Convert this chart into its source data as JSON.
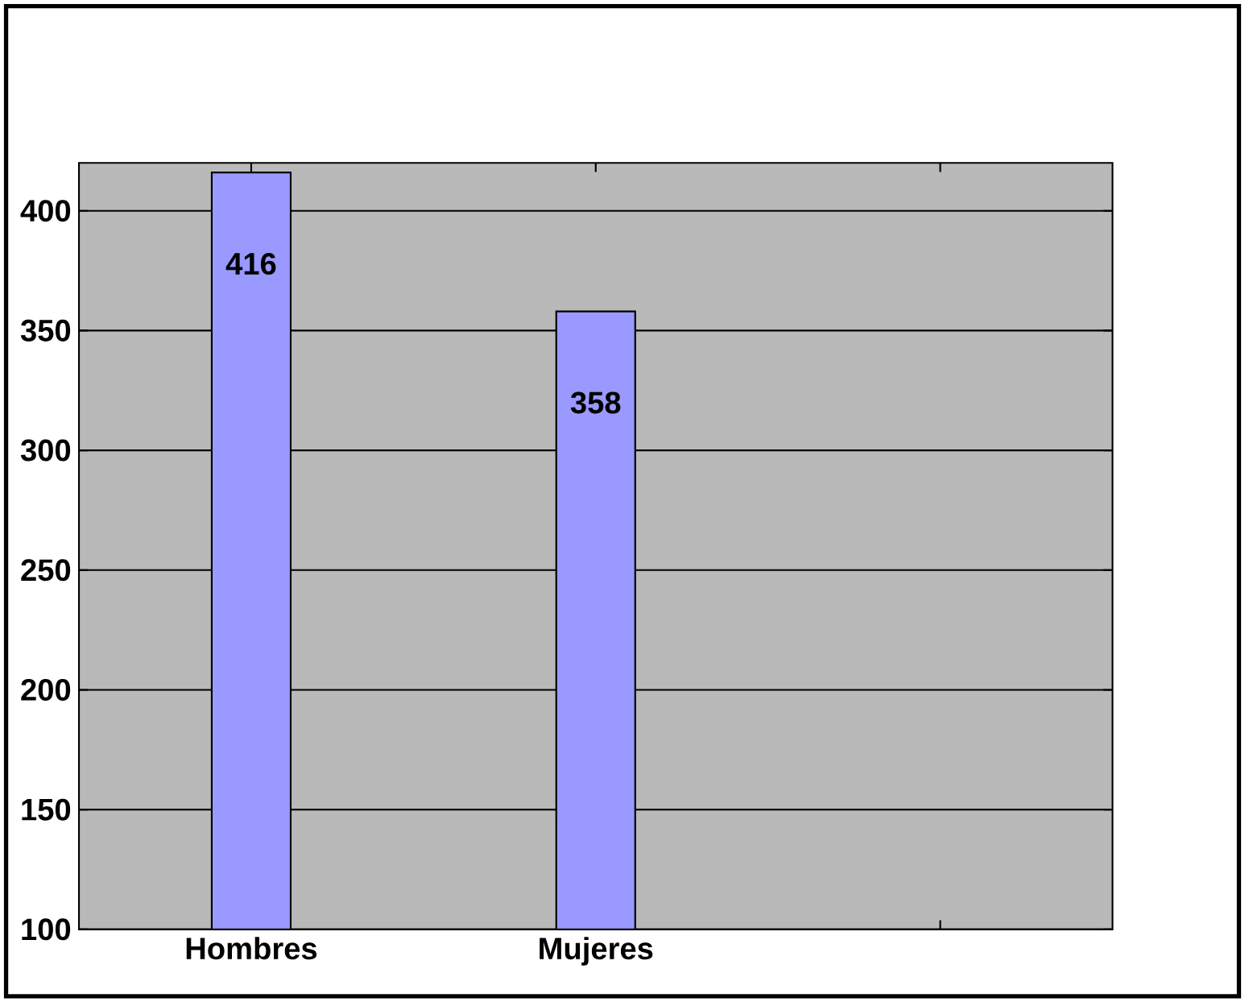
{
  "chart_data": {
    "type": "bar",
    "categories": [
      "Hombres",
      "Mujeres",
      null
    ],
    "values": [
      416,
      358,
      null
    ],
    "color": "#9999ff",
    "data_labels": true,
    "ylim": [
      100,
      420
    ],
    "yticks": [
      100,
      150,
      200,
      250,
      300,
      350,
      400
    ],
    "grid": "y"
  }
}
